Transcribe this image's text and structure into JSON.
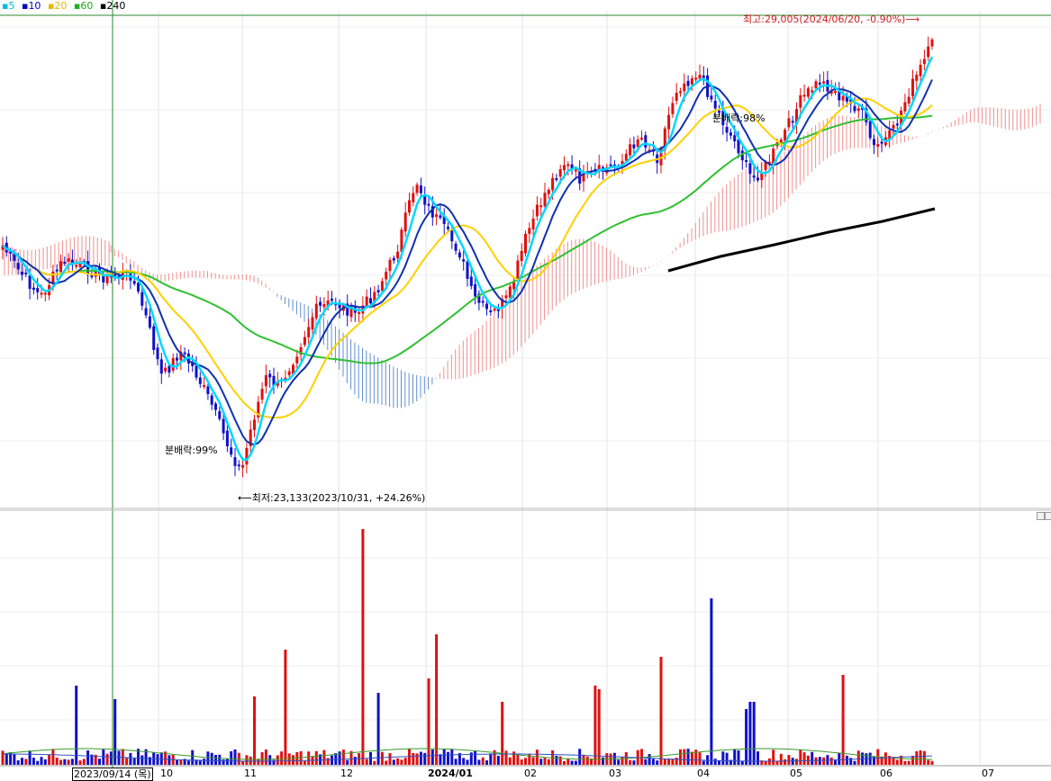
{
  "legend": [
    {
      "label": "5",
      "color": "#00c8ff"
    },
    {
      "label": "10",
      "color": "#0000c0"
    },
    {
      "label": "20",
      "color": "#e6b800"
    },
    {
      "label": "60",
      "color": "#22aa22"
    },
    {
      "label": "240",
      "color": "#000000"
    }
  ],
  "annotations": {
    "high": "최고:29,005(2024/06/20, -0.90%)",
    "low": "최저:23,133(2023/10/31, +24.26%)",
    "split1": "분배락:99%",
    "split2": "분배락:98%"
  },
  "cursor_date": "2023/09/14 (목)",
  "chart_data": {
    "type": "candlestick",
    "x_ticks": [
      "10",
      "11",
      "12",
      "2024/01",
      "02",
      "03",
      "04",
      "05",
      "06",
      "07"
    ],
    "price_range_approx": [
      22800,
      29600
    ],
    "key_points": [
      {
        "date": "2023/10/31",
        "price": 23133,
        "note": "low"
      },
      {
        "date": "2024/06/20",
        "price": 29005,
        "note": "high"
      }
    ],
    "moving_averages": [
      "5",
      "10",
      "20",
      "60",
      "240"
    ],
    "colors": {
      "up": "#e01010",
      "down": "#1010c8",
      "ma5": "#00d8ff",
      "ma10": "#1030b0",
      "ma20": "#ffd000",
      "ma60": "#30c030",
      "ma240": "#000000",
      "cloud_pos": "#f09090",
      "cloud_neg": "#6090d0"
    }
  }
}
